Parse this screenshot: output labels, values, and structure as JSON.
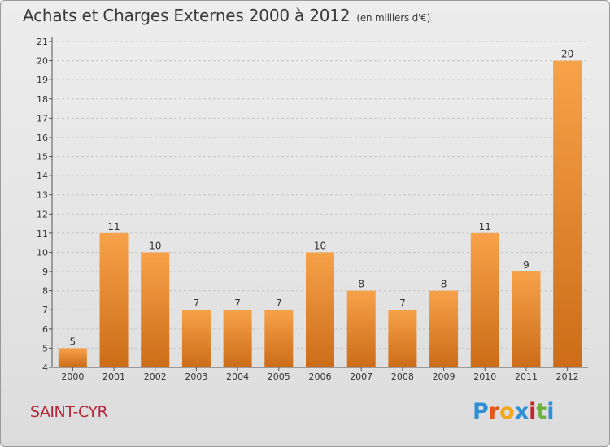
{
  "header": {
    "title": "Achats et Charges Externes 2000 à 2012",
    "unit": "(en milliers d'€)"
  },
  "footer": {
    "commune": "SAINT-CYR",
    "logo_text": "Proxiti",
    "logo_colors": [
      "#2d8fd5",
      "#e8571a",
      "#f2a81d",
      "#2d8fd5",
      "#c4262e",
      "#6cb33f",
      "#2d8fd5"
    ]
  },
  "colors": {
    "bar_light": "#f7a24a",
    "bar_dark": "#cc6c18",
    "axis": "#555555",
    "grid": "#c8c8c8"
  },
  "chart_data": {
    "type": "bar",
    "title": "Achats et Charges Externes 2000 à 2012",
    "subtitle": "(en milliers d'€)",
    "categories": [
      "2000",
      "2001",
      "2002",
      "2003",
      "2004",
      "2005",
      "2006",
      "2007",
      "2008",
      "2009",
      "2010",
      "2011",
      "2012"
    ],
    "values": [
      5,
      11,
      10,
      7,
      7,
      7,
      10,
      8,
      7,
      8,
      11,
      9,
      20
    ],
    "ylim": [
      4,
      21
    ],
    "yticks": [
      4,
      5,
      6,
      7,
      8,
      9,
      10,
      11,
      12,
      13,
      14,
      15,
      16,
      17,
      18,
      19,
      20,
      21
    ],
    "xlabel": "",
    "ylabel": "",
    "grid": true
  }
}
